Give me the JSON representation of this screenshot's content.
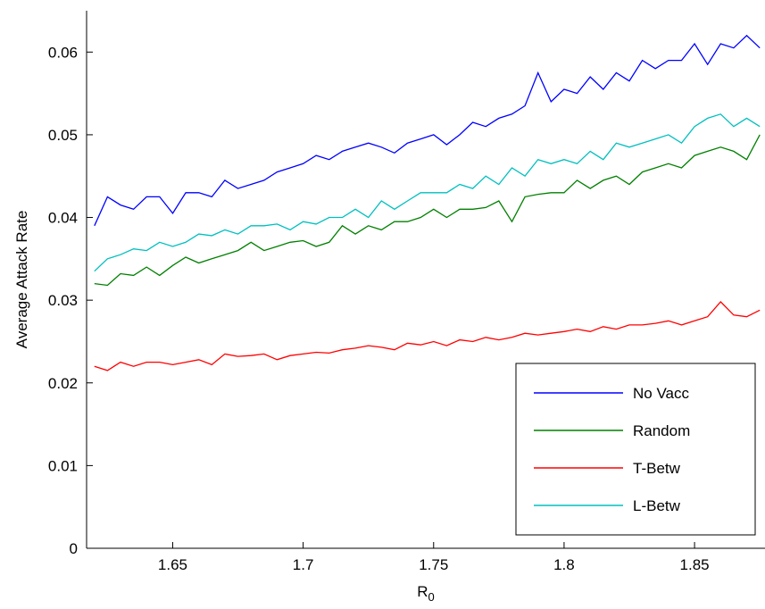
{
  "chart_data": {
    "type": "line",
    "xlabel": "R",
    "xlabel_subscript": "0",
    "ylabel": "Average Attack Rate",
    "xlim": [
      1.617,
      1.877
    ],
    "ylim": [
      0,
      0.065
    ],
    "xticks": [
      1.65,
      1.7,
      1.75,
      1.8,
      1.85
    ],
    "xtick_labels": [
      "1.65",
      "1.7",
      "1.75",
      "1.8",
      "1.85"
    ],
    "yticks": [
      0,
      0.01,
      0.02,
      0.03,
      0.04,
      0.05,
      0.06
    ],
    "ytick_labels": [
      "0",
      "0.01",
      "0.02",
      "0.03",
      "0.04",
      "0.05",
      "0.06"
    ],
    "grid": false,
    "legend_position": "bottom-right",
    "x": [
      1.62,
      1.625,
      1.63,
      1.635,
      1.64,
      1.645,
      1.65,
      1.655,
      1.66,
      1.665,
      1.67,
      1.675,
      1.68,
      1.685,
      1.69,
      1.695,
      1.7,
      1.705,
      1.71,
      1.715,
      1.72,
      1.725,
      1.73,
      1.735,
      1.74,
      1.745,
      1.75,
      1.755,
      1.76,
      1.765,
      1.77,
      1.775,
      1.78,
      1.785,
      1.79,
      1.795,
      1.8,
      1.805,
      1.81,
      1.815,
      1.82,
      1.825,
      1.83,
      1.835,
      1.84,
      1.845,
      1.85,
      1.855,
      1.86,
      1.865,
      1.87,
      1.875
    ],
    "series": [
      {
        "name": "No Vacc",
        "color": "#0000ff",
        "values": [
          0.039,
          0.0425,
          0.0415,
          0.041,
          0.0425,
          0.0425,
          0.0405,
          0.043,
          0.043,
          0.0425,
          0.0445,
          0.0435,
          0.044,
          0.0445,
          0.0455,
          0.046,
          0.0465,
          0.0475,
          0.047,
          0.048,
          0.0485,
          0.049,
          0.0485,
          0.0478,
          0.049,
          0.0495,
          0.05,
          0.0488,
          0.05,
          0.0515,
          0.051,
          0.052,
          0.0525,
          0.0535,
          0.0575,
          0.054,
          0.0555,
          0.055,
          0.057,
          0.0555,
          0.0575,
          0.0565,
          0.059,
          0.058,
          0.059,
          0.059,
          0.061,
          0.0585,
          0.061,
          0.0605,
          0.062,
          0.0605
        ]
      },
      {
        "name": "Random",
        "color": "#008000",
        "values": [
          0.032,
          0.0318,
          0.0332,
          0.033,
          0.034,
          0.033,
          0.0342,
          0.0352,
          0.0345,
          0.035,
          0.0355,
          0.036,
          0.037,
          0.036,
          0.0365,
          0.037,
          0.0372,
          0.0365,
          0.037,
          0.039,
          0.038,
          0.039,
          0.0385,
          0.0395,
          0.0395,
          0.04,
          0.041,
          0.04,
          0.041,
          0.041,
          0.0412,
          0.042,
          0.0395,
          0.0425,
          0.0428,
          0.043,
          0.043,
          0.0445,
          0.0435,
          0.0445,
          0.045,
          0.044,
          0.0455,
          0.046,
          0.0465,
          0.046,
          0.0475,
          0.048,
          0.0485,
          0.048,
          0.047,
          0.05
        ]
      },
      {
        "name": "T-Betw",
        "color": "#ff0000",
        "values": [
          0.022,
          0.0215,
          0.0225,
          0.022,
          0.0225,
          0.0225,
          0.0222,
          0.0225,
          0.0228,
          0.0222,
          0.0235,
          0.0232,
          0.0233,
          0.0235,
          0.0228,
          0.0233,
          0.0235,
          0.0237,
          0.0236,
          0.024,
          0.0242,
          0.0245,
          0.0243,
          0.024,
          0.0248,
          0.0246,
          0.025,
          0.0245,
          0.0252,
          0.025,
          0.0255,
          0.0252,
          0.0255,
          0.026,
          0.0258,
          0.026,
          0.0262,
          0.0265,
          0.0262,
          0.0268,
          0.0265,
          0.027,
          0.027,
          0.0272,
          0.0275,
          0.027,
          0.0275,
          0.028,
          0.0298,
          0.0282,
          0.028,
          0.0288
        ]
      },
      {
        "name": "L-Betw",
        "color": "#00bfbf",
        "values": [
          0.0335,
          0.035,
          0.0355,
          0.0362,
          0.036,
          0.037,
          0.0365,
          0.037,
          0.038,
          0.0378,
          0.0385,
          0.038,
          0.039,
          0.039,
          0.0392,
          0.0385,
          0.0395,
          0.0392,
          0.04,
          0.04,
          0.041,
          0.04,
          0.042,
          0.041,
          0.042,
          0.043,
          0.043,
          0.043,
          0.044,
          0.0435,
          0.045,
          0.044,
          0.046,
          0.045,
          0.047,
          0.0465,
          0.047,
          0.0465,
          0.048,
          0.047,
          0.049,
          0.0485,
          0.049,
          0.0495,
          0.05,
          0.049,
          0.051,
          0.052,
          0.0525,
          0.051,
          0.052,
          0.051
        ]
      }
    ]
  }
}
